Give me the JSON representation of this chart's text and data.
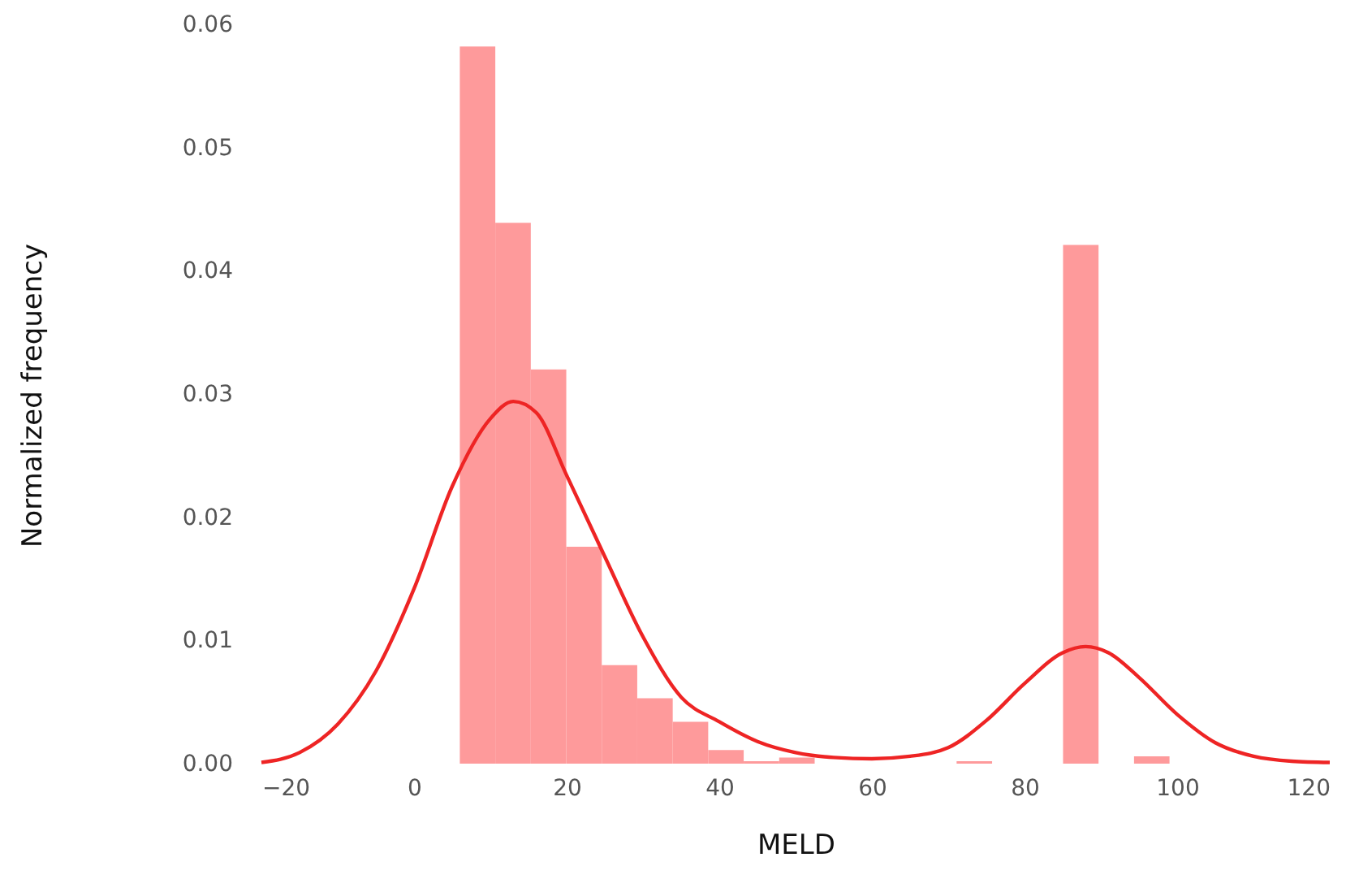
{
  "chart_data": {
    "type": "histogram",
    "xlabel": "MELD",
    "ylabel": "Normalized frequency",
    "xlim": [
      -20,
      120
    ],
    "ylim": [
      0,
      0.06
    ],
    "xticks": [
      {
        "value": -20,
        "label": "−20"
      },
      0,
      20,
      40,
      60,
      80,
      100,
      120
    ],
    "yticks": [
      {
        "value": 0,
        "label": "0.00"
      },
      {
        "value": 0.01,
        "label": "0.01"
      },
      {
        "value": 0.02,
        "label": "0.02"
      },
      {
        "value": 0.03,
        "label": "0.03"
      },
      {
        "value": 0.04,
        "label": "0.04"
      },
      {
        "value": 0.05,
        "label": "0.05"
      },
      {
        "value": 0.06,
        "label": "0.06"
      }
    ],
    "series": [
      {
        "color": "#fe9a9b",
        "bins": [
          6,
          10.65,
          15.3,
          19.95,
          24.6,
          29.25,
          33.9,
          38.55,
          43.2,
          47.85,
          52.5,
          57.15,
          61.8,
          66.45,
          71.1,
          75.75,
          80.4,
          85.05,
          89.7,
          94.35,
          99
        ],
        "values": [
          0.0582,
          0.0439,
          0.032,
          0.0176,
          0.008,
          0.0053,
          0.0034,
          0.0011,
          0.0002,
          0.0005,
          0,
          0,
          0,
          0,
          0.0002,
          0,
          0,
          0.0421,
          0,
          0.0006
        ]
      },
      {
        "type": "line",
        "color": "#ee2424",
        "x": [
          -20,
          -15,
          -10,
          -5,
          0,
          5,
          10,
          13,
          16,
          20,
          25,
          30,
          35,
          40,
          45,
          50,
          55,
          60,
          65,
          70,
          75,
          80,
          85,
          88,
          91,
          95,
          100,
          105,
          110,
          115,
          120
        ],
        "values": [
          0.0001,
          0.0009,
          0.0032,
          0.0075,
          0.0142,
          0.0225,
          0.028,
          0.0294,
          0.0285,
          0.0234,
          0.0168,
          0.0103,
          0.0054,
          0.0034,
          0.0018,
          0.0009,
          0.0005,
          0.0004,
          0.0006,
          0.0013,
          0.0035,
          0.0065,
          0.009,
          0.0095,
          0.009,
          0.007,
          0.004,
          0.0017,
          0.0006,
          0.0002,
          0.0001
        ]
      }
    ]
  }
}
